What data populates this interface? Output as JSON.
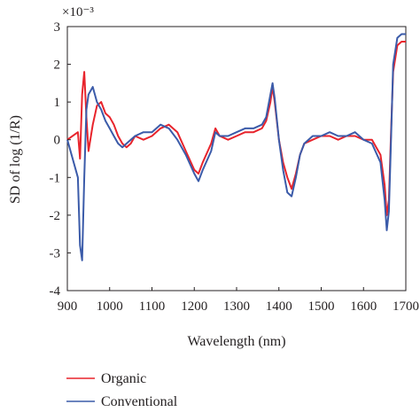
{
  "chart_data": {
    "type": "line",
    "title": "",
    "xlabel": "Wavelength (nm)",
    "ylabel": "SD of log (1/R)",
    "scale_label": "×10⁻³",
    "xlim": [
      900,
      1700
    ],
    "ylim": [
      -4,
      3
    ],
    "x_ticks": [
      900,
      1000,
      1100,
      1200,
      1300,
      1400,
      1500,
      1600,
      1700
    ],
    "y_ticks": [
      -4,
      -3,
      -2,
      -1,
      0,
      1,
      2,
      3
    ],
    "grid": false,
    "legend_position": "bottom-left",
    "series": [
      {
        "name": "Organic",
        "color": "#e8242c",
        "x": [
          900,
          925,
          930,
          935,
          940,
          945,
          950,
          960,
          970,
          980,
          990,
          1000,
          1010,
          1020,
          1030,
          1040,
          1050,
          1060,
          1080,
          1100,
          1120,
          1140,
          1160,
          1180,
          1200,
          1210,
          1220,
          1240,
          1250,
          1260,
          1280,
          1300,
          1320,
          1340,
          1360,
          1370,
          1380,
          1385,
          1390,
          1400,
          1410,
          1420,
          1430,
          1440,
          1450,
          1460,
          1480,
          1500,
          1520,
          1540,
          1560,
          1580,
          1600,
          1620,
          1640,
          1650,
          1655,
          1660,
          1665,
          1670,
          1680,
          1690,
          1700
        ],
        "values": [
          0.0,
          0.2,
          -0.5,
          1.2,
          1.8,
          0.6,
          -0.3,
          0.4,
          0.9,
          1.0,
          0.7,
          0.6,
          0.4,
          0.1,
          -0.1,
          -0.2,
          -0.1,
          0.1,
          0.0,
          0.1,
          0.3,
          0.4,
          0.2,
          -0.3,
          -0.8,
          -0.9,
          -0.6,
          -0.1,
          0.3,
          0.1,
          0.0,
          0.1,
          0.2,
          0.2,
          0.3,
          0.5,
          1.0,
          1.4,
          1.0,
          0.0,
          -0.6,
          -1.0,
          -1.3,
          -0.9,
          -0.4,
          -0.1,
          0.0,
          0.1,
          0.1,
          0.0,
          0.1,
          0.1,
          0.0,
          0.0,
          -0.4,
          -1.2,
          -2.0,
          -1.6,
          0.2,
          1.8,
          2.5,
          2.6,
          2.6
        ]
      },
      {
        "name": "Conventional",
        "color": "#3b5ba9",
        "x": [
          900,
          925,
          930,
          935,
          940,
          945,
          950,
          960,
          970,
          980,
          990,
          1000,
          1010,
          1020,
          1030,
          1040,
          1050,
          1060,
          1080,
          1100,
          1120,
          1140,
          1160,
          1180,
          1200,
          1210,
          1220,
          1240,
          1250,
          1260,
          1280,
          1300,
          1320,
          1340,
          1360,
          1370,
          1380,
          1385,
          1390,
          1400,
          1410,
          1420,
          1430,
          1440,
          1450,
          1460,
          1480,
          1500,
          1520,
          1540,
          1560,
          1580,
          1600,
          1620,
          1640,
          1650,
          1655,
          1660,
          1665,
          1670,
          1680,
          1690,
          1700
        ],
        "values": [
          0.0,
          -1.0,
          -2.8,
          -3.2,
          -1.0,
          0.8,
          1.2,
          1.4,
          1.0,
          0.8,
          0.5,
          0.3,
          0.1,
          -0.1,
          -0.2,
          -0.1,
          0.0,
          0.1,
          0.2,
          0.2,
          0.4,
          0.3,
          0.0,
          -0.4,
          -0.9,
          -1.1,
          -0.8,
          -0.3,
          0.2,
          0.1,
          0.1,
          0.2,
          0.3,
          0.3,
          0.4,
          0.6,
          1.2,
          1.5,
          1.1,
          0.0,
          -0.8,
          -1.4,
          -1.5,
          -1.0,
          -0.4,
          -0.1,
          0.1,
          0.1,
          0.2,
          0.1,
          0.1,
          0.2,
          0.0,
          -0.1,
          -0.6,
          -1.6,
          -2.4,
          -1.9,
          0.0,
          2.0,
          2.7,
          2.8,
          2.8
        ]
      }
    ]
  }
}
